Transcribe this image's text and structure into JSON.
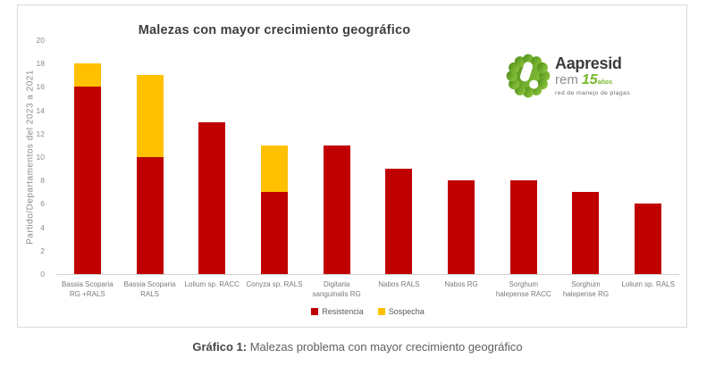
{
  "chart_data": {
    "type": "bar",
    "stacked": true,
    "title": "Malezas con mayor crecimiento geográfico",
    "ylabel": "Partido/Departamentos del 2023 a 2021",
    "xlabel": "",
    "ylim": [
      0,
      20
    ],
    "ytick_step": 2,
    "grid": false,
    "legend_position": "bottom",
    "categories": [
      "Bassia Scoparia RG +RALS",
      "Bassia Scoparia RALS",
      "Lolium sp. RACC",
      "Conyza sp. RALS",
      "Digitaria sanguinalis RG",
      "Nabos RALS",
      "Nabos RG",
      "Sorghum halepense RACC",
      "Sorghum halepense RG",
      "Lolium sp. RALS"
    ],
    "series": [
      {
        "name": "Resistencia",
        "color": "#C00000",
        "values": [
          16,
          10,
          13,
          7,
          11,
          9,
          8,
          8,
          7,
          6
        ]
      },
      {
        "name": "Sospecha",
        "color": "#FFC000",
        "values": [
          2,
          7,
          0,
          4,
          0,
          0,
          0,
          0,
          0,
          0
        ]
      }
    ],
    "totals": [
      18,
      17,
      13,
      11,
      11,
      9,
      8,
      8,
      7,
      6
    ]
  },
  "caption": {
    "prefix": "Gráfico 1:",
    "text": "Malezas problema con mayor crecimiento geográfico"
  },
  "logo": {
    "brand": "Aapresid",
    "sub_brand": "rem",
    "years": "15",
    "years_suffix": "años",
    "tagline": "red de manejo de plagas",
    "green": "#76b82a"
  },
  "frame": {
    "border_color": "#d9d9d9",
    "axis_color": "#d0d0d0"
  }
}
